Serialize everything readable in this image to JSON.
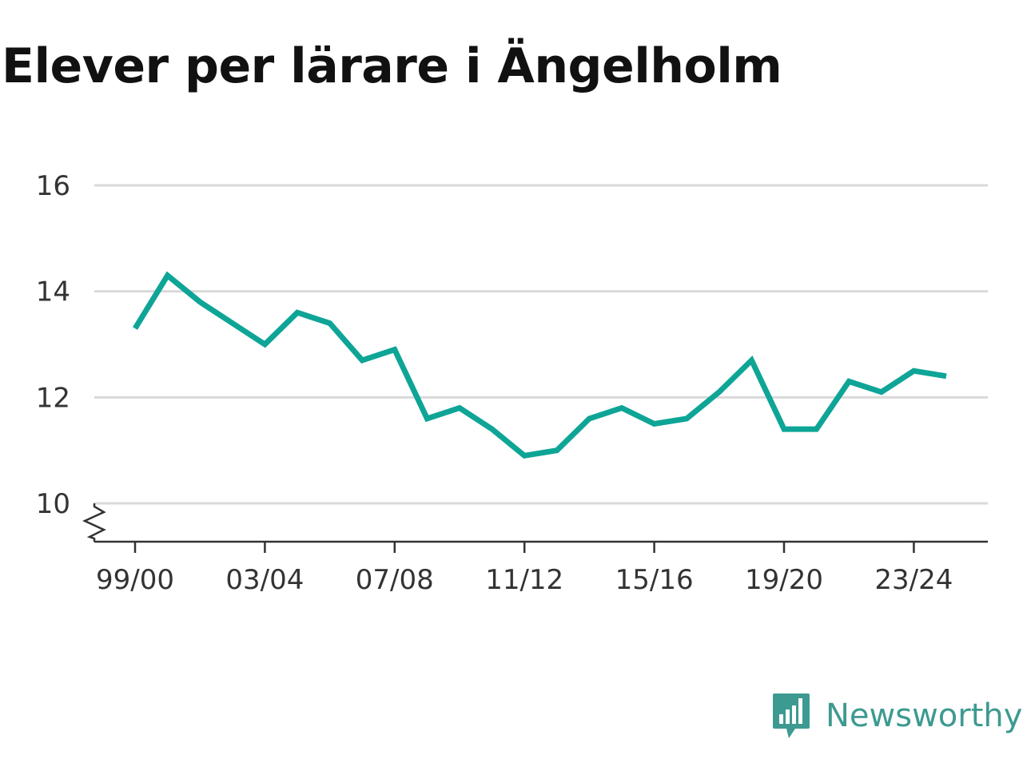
{
  "brand": {
    "name": "Newsworthy",
    "icon": "bar-chart-speech-bubble-icon",
    "color": "#3d9a91"
  },
  "chart_data": {
    "type": "line",
    "title": "Elever per lärare i Ängelholm",
    "xlabel": "",
    "ylabel": "",
    "x": [
      "99/00",
      "00/01",
      "01/02",
      "02/03",
      "03/04",
      "04/05",
      "05/06",
      "06/07",
      "07/08",
      "08/09",
      "09/10",
      "10/11",
      "11/12",
      "12/13",
      "13/14",
      "14/15",
      "15/16",
      "16/17",
      "17/18",
      "18/19",
      "19/20",
      "20/21",
      "21/22",
      "22/23",
      "23/24",
      "24/25"
    ],
    "x_tick_labels": [
      "99/00",
      "03/04",
      "07/08",
      "11/12",
      "15/16",
      "19/20",
      "23/24"
    ],
    "y_ticks": [
      10,
      12,
      14,
      16
    ],
    "ylim": [
      9.3,
      16
    ],
    "y_axis_break": true,
    "grid": true,
    "series": [
      {
        "color": "#0ea597",
        "values": [
          13.3,
          14.3,
          13.8,
          13.4,
          13.0,
          13.6,
          13.4,
          12.7,
          12.9,
          11.6,
          11.8,
          11.4,
          10.9,
          11.0,
          11.6,
          11.8,
          11.5,
          11.6,
          12.1,
          12.7,
          11.4,
          11.4,
          12.3,
          12.1,
          12.5,
          12.4
        ]
      }
    ]
  }
}
